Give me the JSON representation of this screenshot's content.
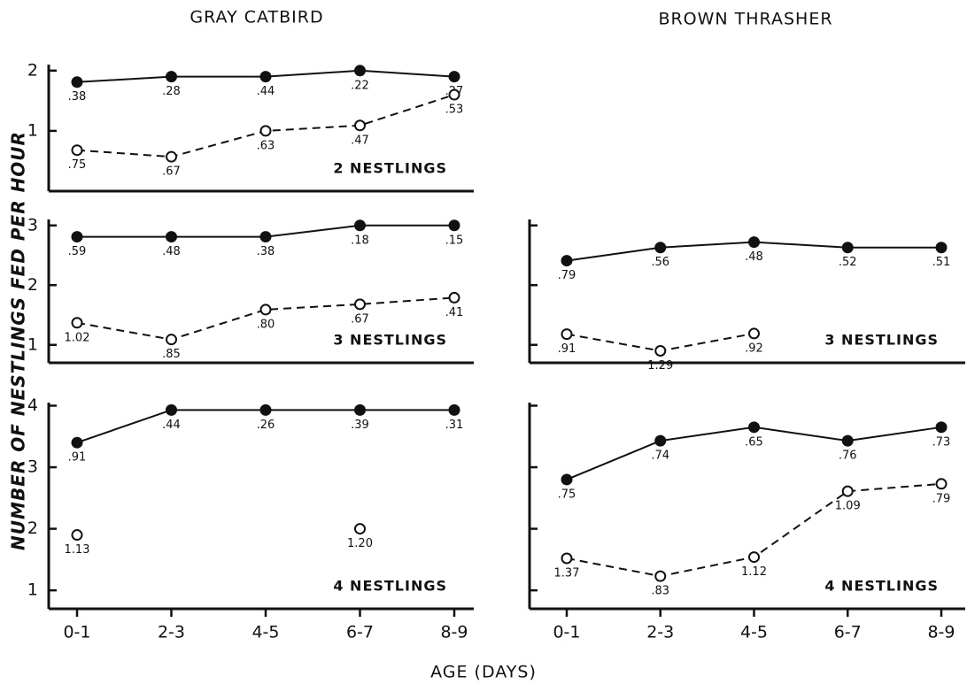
{
  "figure": {
    "columns": [
      "GRAY CATBIRD",
      "BROWN THRASHER"
    ],
    "y_label": "NUMBER OF NESTLINGS FED PER HOUR",
    "x_label": "AGE (DAYS)"
  },
  "chart_data": [
    {
      "type": "line",
      "column": 0,
      "row": 0,
      "annotation": "2 NESTLINGS",
      "ylim": [
        0,
        2.1
      ],
      "yticks": [
        1,
        2
      ],
      "show_ytick_labels": true,
      "series": [
        {
          "color": "#111111",
          "marker": "filled",
          "line": "solid",
          "values": [
            1.81,
            1.9,
            1.9,
            2.0,
            1.9
          ],
          "point_labels": [
            ".38",
            ".28",
            ".44",
            ".22",
            ".27"
          ]
        },
        {
          "color": "#111111",
          "marker": "open",
          "line": "dashed",
          "values": [
            0.68,
            0.57,
            1.0,
            1.09,
            1.6
          ],
          "point_labels": [
            ".75",
            ".67",
            ".63",
            ".47",
            ".53"
          ]
        }
      ]
    },
    {
      "type": "line",
      "column": 0,
      "row": 1,
      "annotation": "3 NESTLINGS",
      "ylim": [
        0.7,
        3.1
      ],
      "yticks": [
        1,
        2,
        3
      ],
      "show_ytick_labels": true,
      "series": [
        {
          "color": "#111111",
          "marker": "filled",
          "line": "solid",
          "values": [
            2.81,
            2.81,
            2.81,
            3.0,
            3.0
          ],
          "point_labels": [
            ".59",
            ".48",
            ".38",
            ".18",
            ".15"
          ]
        },
        {
          "color": "#111111",
          "marker": "open",
          "line": "dashed",
          "values": [
            1.37,
            1.09,
            1.59,
            1.68,
            1.79
          ],
          "point_labels": [
            "1.02",
            ".85",
            ".80",
            ".67",
            ".41"
          ]
        }
      ]
    },
    {
      "type": "line",
      "column": 0,
      "row": 2,
      "annotation": "4 NESTLINGS",
      "ylim": [
        0.7,
        4.05
      ],
      "yticks": [
        1,
        2,
        3,
        4
      ],
      "show_ytick_labels": true,
      "categories": [
        "0-1",
        "2-3",
        "4-5",
        "6-7",
        "8-9"
      ],
      "series": [
        {
          "color": "#111111",
          "marker": "filled",
          "line": "solid",
          "values": [
            3.4,
            3.93,
            3.93,
            3.93,
            3.93
          ],
          "point_labels": [
            ".91",
            ".44",
            ".26",
            ".39",
            ".31"
          ]
        },
        {
          "color": "#111111",
          "marker": "open",
          "line": "dashed",
          "values": [
            1.9,
            null,
            null,
            2.0,
            null
          ],
          "point_labels": [
            "1.13",
            null,
            null,
            "1.20",
            null
          ]
        }
      ]
    },
    {
      "type": "line",
      "column": 1,
      "row": 1,
      "annotation": "3 NESTLINGS",
      "ylim": [
        0.7,
        3.1
      ],
      "yticks": [
        1,
        2,
        3
      ],
      "show_ytick_labels": false,
      "series": [
        {
          "color": "#111111",
          "marker": "filled",
          "line": "solid",
          "values": [
            2.41,
            2.63,
            2.72,
            2.63,
            2.63
          ],
          "point_labels": [
            ".79",
            ".56",
            ".48",
            ".52",
            ".51"
          ]
        },
        {
          "color": "#111111",
          "marker": "open",
          "line": "dashed",
          "values": [
            1.18,
            0.9,
            1.19,
            null,
            null
          ],
          "point_labels": [
            ".91",
            "1.29",
            ".92",
            null,
            null
          ]
        }
      ]
    },
    {
      "type": "line",
      "column": 1,
      "row": 2,
      "annotation": "4 NESTLINGS",
      "ylim": [
        0.7,
        4.05
      ],
      "yticks": [
        1,
        2,
        3,
        4
      ],
      "show_ytick_labels": false,
      "categories": [
        "0-1",
        "2-3",
        "4-5",
        "6-7",
        "8-9"
      ],
      "series": [
        {
          "color": "#111111",
          "marker": "filled",
          "line": "solid",
          "values": [
            2.8,
            3.43,
            3.65,
            3.43,
            3.65
          ],
          "point_labels": [
            ".75",
            ".74",
            ".65",
            ".76",
            ".73"
          ]
        },
        {
          "color": "#111111",
          "marker": "open",
          "line": "dashed",
          "values": [
            1.52,
            1.23,
            1.54,
            2.61,
            2.73
          ],
          "point_labels": [
            "1.37",
            ".83",
            "1.12",
            "1.09",
            ".79"
          ]
        }
      ]
    }
  ]
}
